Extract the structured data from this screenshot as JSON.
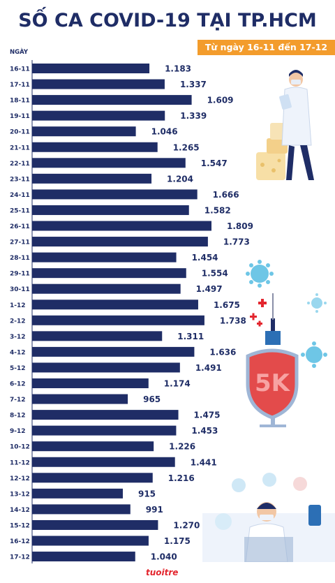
{
  "title": "SỐ CA COVID-19 TẠI TP.HCM",
  "subtitle": "Từ ngày 16-11 đến 17-12",
  "logo_text": "tuoitre",
  "colors": {
    "bar": "#1f2d66",
    "text": "#1f2d66",
    "accent": "#f39c2c",
    "logo": "#e3262e"
  },
  "chart_data": {
    "type": "bar",
    "orientation": "horizontal",
    "title": "SỐ CA COVID-19 TẠI TP.HCM",
    "subtitle": "Từ ngày 16-11 đến 17-12",
    "ylabel": "NGÀY",
    "xlabel": "",
    "categories": [
      "16-11",
      "17-11",
      "18-11",
      "19-11",
      "20-11",
      "21-11",
      "22-11",
      "23-11",
      "24-11",
      "25-11",
      "26-11",
      "27-11",
      "28-11",
      "29-11",
      "30-11",
      "1-12",
      "2-12",
      "3-12",
      "4-12",
      "5-12",
      "6-12",
      "7-12",
      "8-12",
      "9-12",
      "10-12",
      "11-12",
      "12-12",
      "13-12",
      "14-12",
      "15-12",
      "16-12",
      "17-12"
    ],
    "values": [
      1183,
      1337,
      1609,
      1339,
      1046,
      1265,
      1547,
      1204,
      1666,
      1582,
      1809,
      1773,
      1454,
      1554,
      1497,
      1675,
      1738,
      1311,
      1636,
      1491,
      1174,
      965,
      1475,
      1453,
      1226,
      1441,
      1216,
      915,
      991,
      1270,
      1175,
      1040
    ],
    "value_labels": [
      "1.183",
      "1.337",
      "1.609",
      "1.339",
      "1.046",
      "1.265",
      "1.547",
      "1.204",
      "1.666",
      "1.582",
      "1.809",
      "1.773",
      "1.454",
      "1.554",
      "1.497",
      "1.675",
      "1.738",
      "1.311",
      "1.636",
      "1.491",
      "1.174",
      "965",
      "1.475",
      "1.453",
      "1.226",
      "1.441",
      "1.216",
      "915",
      "991",
      "1.270",
      "1.175",
      "1.040"
    ],
    "xlim": [
      0,
      1809
    ],
    "grid": false,
    "legend": "none"
  }
}
